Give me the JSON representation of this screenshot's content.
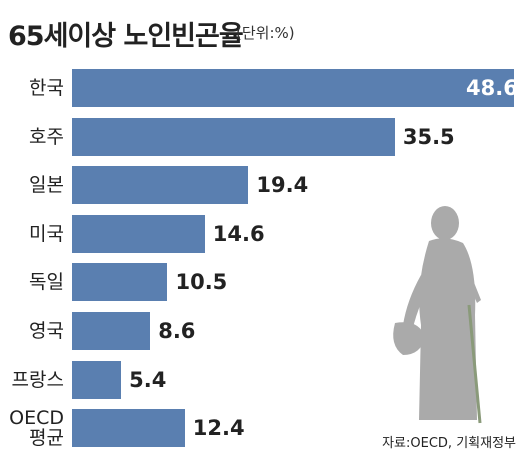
{
  "chart_data": {
    "type": "bar",
    "orientation": "horizontal",
    "title": "65세이상 노인빈곤율",
    "subtitle": "(단위:%)",
    "categories": [
      "한국",
      "호주",
      "일본",
      "미국",
      "독일",
      "영국",
      "프랑스",
      "OECD 평균"
    ],
    "values": [
      48.6,
      35.5,
      19.4,
      14.6,
      10.5,
      8.6,
      5.4,
      12.4
    ],
    "color": "#5a7fb0",
    "source": "자료:OECD, 기획재정부"
  }
}
